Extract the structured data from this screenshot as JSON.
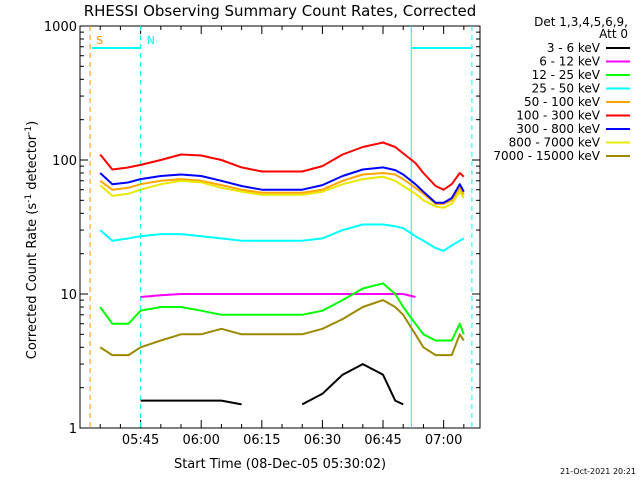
{
  "chart_data": {
    "type": "line",
    "title": "RHESSI Observing Summary Count Rates, Corrected",
    "xlabel": "Start Time (08-Dec-05 05:30:02)",
    "ylabel_main": "Corrected Count Rate (s",
    "ylabel_sup1": "-1",
    "ylabel_mid": " detector",
    "ylabel_sup2": "-1",
    "ylabel_end": ")",
    "yscale": "log",
    "ylim": [
      1,
      1000
    ],
    "xlim_minutes": [
      0,
      99
    ],
    "grid": false,
    "yticks": [
      {
        "value": 1,
        "label": "1"
      },
      {
        "value": 10,
        "label": "10"
      },
      {
        "value": 100,
        "label": "100"
      },
      {
        "value": 1000,
        "label": "1000"
      }
    ],
    "xticks": [
      {
        "minutes": 15,
        "label": "05:45"
      },
      {
        "minutes": 30,
        "label": "06:00"
      },
      {
        "minutes": 45,
        "label": "06:15"
      },
      {
        "minutes": 60,
        "label": "06:30"
      },
      {
        "minutes": 75,
        "label": "06:45"
      },
      {
        "minutes": 90,
        "label": "07:00"
      }
    ],
    "legend": {
      "placement": "right",
      "header_line1": "Det 1,3,4,5,6,9,",
      "header_line2": "Att 0"
    },
    "x": [
      3,
      5,
      8,
      12,
      15,
      20,
      25,
      30,
      35,
      40,
      45,
      50,
      55,
      60,
      65,
      70,
      75,
      78,
      80,
      83,
      85,
      88,
      90,
      92,
      94,
      95
    ],
    "series": [
      {
        "name": "3 - 6 keV",
        "color": "#000000",
        "values": [
          null,
          null,
          null,
          null,
          1.6,
          1.6,
          1.6,
          1.6,
          1.6,
          1.5,
          null,
          null,
          1.5,
          1.8,
          2.5,
          3,
          2.5,
          1.6,
          1.5,
          null,
          null,
          null,
          null,
          null,
          null,
          null
        ]
      },
      {
        "name": "6 - 12 keV",
        "color": "#ff00ff",
        "values": [
          null,
          null,
          null,
          null,
          9.5,
          9.8,
          10,
          10,
          10,
          10,
          10,
          10,
          10,
          10,
          10,
          10,
          10,
          10,
          10,
          9.5,
          null,
          null,
          null,
          null,
          null,
          null
        ]
      },
      {
        "name": "12 - 25 keV",
        "color": "#00ff00",
        "values": [
          null,
          8,
          6,
          6,
          7.5,
          8,
          8,
          7.5,
          7,
          7,
          7,
          7,
          7,
          7.5,
          9,
          11,
          12,
          10,
          8,
          6,
          5,
          4.5,
          4.5,
          4.5,
          6,
          5
        ]
      },
      {
        "name": "25 - 50 keV",
        "color": "#00ffff",
        "values": [
          null,
          30,
          25,
          26,
          27,
          28,
          28,
          27,
          26,
          25,
          25,
          25,
          25,
          26,
          30,
          33,
          33,
          32,
          31,
          27,
          25,
          22,
          21,
          23,
          25,
          26
        ]
      },
      {
        "name": "50 - 100 keV",
        "color": "#ffa500",
        "values": [
          null,
          70,
          60,
          62,
          66,
          70,
          72,
          70,
          65,
          60,
          57,
          57,
          57,
          60,
          70,
          78,
          80,
          78,
          72,
          62,
          56,
          47,
          47,
          50,
          62,
          55
        ]
      },
      {
        "name": "100 - 300 keV",
        "color": "#ff0000",
        "values": [
          null,
          110,
          85,
          88,
          92,
          100,
          110,
          108,
          100,
          88,
          82,
          82,
          82,
          90,
          110,
          125,
          135,
          125,
          112,
          95,
          80,
          64,
          60,
          66,
          80,
          75
        ]
      },
      {
        "name": "300 - 800 keV",
        "color": "#0000ff",
        "values": [
          null,
          80,
          66,
          68,
          72,
          76,
          78,
          76,
          70,
          64,
          60,
          60,
          60,
          65,
          76,
          85,
          88,
          84,
          78,
          66,
          58,
          48,
          48,
          52,
          66,
          58
        ]
      },
      {
        "name": "800 - 7000 keV",
        "color": "#e8e800",
        "values": [
          null,
          65,
          54,
          56,
          60,
          66,
          70,
          68,
          62,
          58,
          55,
          55,
          55,
          58,
          66,
          72,
          75,
          70,
          64,
          56,
          50,
          45,
          44,
          47,
          58,
          52
        ]
      },
      {
        "name": "7000 - 15000 keV",
        "color": "#9b8a00",
        "values": [
          null,
          4,
          3.5,
          3.5,
          4,
          4.5,
          5,
          5,
          5.5,
          5,
          5,
          5,
          5,
          5.5,
          6.5,
          8,
          9,
          8,
          7,
          5,
          4,
          3.5,
          3.5,
          3.5,
          5,
          4.5
        ]
      }
    ],
    "markers": [
      {
        "label": "S",
        "minutes": 2.5,
        "color": "#ff8c00",
        "style": "dashed"
      },
      {
        "label": "N",
        "minutes": 15,
        "color": "#00ffff",
        "style": "dashed"
      },
      {
        "label": "",
        "minutes": 82,
        "color": "#00ffff",
        "style": "solid"
      },
      {
        "label": "",
        "minutes": 97,
        "color": "#00ffff",
        "style": "dashed"
      }
    ],
    "timestamp": "21-Oct-2021 20:21"
  }
}
